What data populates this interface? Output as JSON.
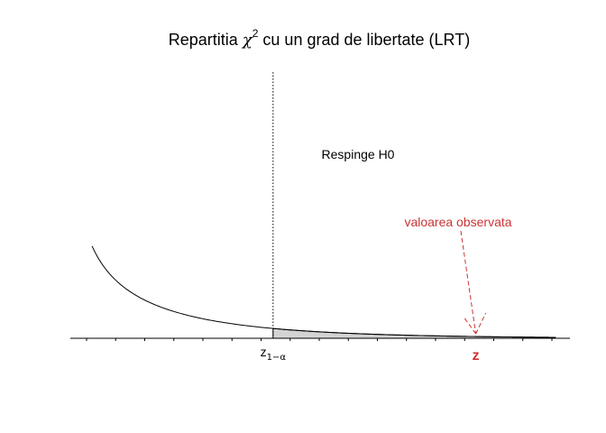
{
  "chart_data": {
    "type": "area",
    "title": {
      "prefix": "Repartitia ",
      "symbol": "χ",
      "superscript": "2",
      "suffix": " cu un grad de libertate (LRT)"
    },
    "xlim": [
      0.1,
      7.0
    ],
    "ylim": [
      0,
      1.45
    ],
    "series": [
      {
        "function": "chi-square density, 1 degree of freedom",
        "x_start": 0.4,
        "x_end": 6.8,
        "color": "#000000"
      }
    ],
    "critical_value": {
      "x": 2.9,
      "label_base": "z",
      "label_subscript": "1−α",
      "line_style": "dotted"
    },
    "rejection_region": {
      "from": 2.9,
      "to": 6.8,
      "fill": "#d3d3d3",
      "label": "Respinge H0"
    },
    "observed_value": {
      "x": 5.7,
      "tick_label": "z",
      "annotation": "valoarea observata",
      "color": "#cc3333"
    },
    "axis": {
      "minor_tick_count": 17
    }
  }
}
